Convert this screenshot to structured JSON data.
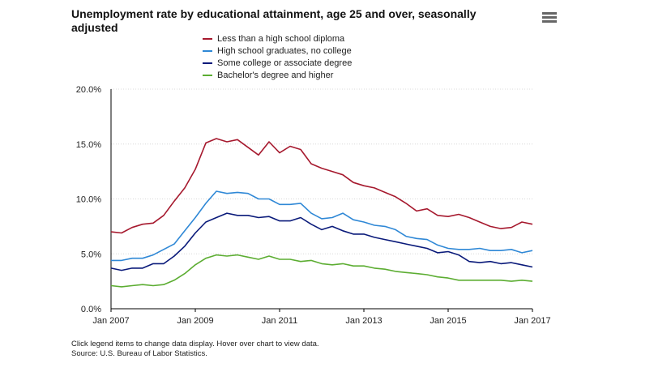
{
  "chart_data": {
    "type": "line",
    "title": "Unemployment rate by educational attainment, age 25 and over, seasonally adjusted",
    "xlabel": "",
    "ylabel": "",
    "ylim": [
      0,
      20
    ],
    "yticks": [
      "0.0%",
      "5.0%",
      "10.0%",
      "15.0%",
      "20.0%"
    ],
    "xticks": [
      "Jan 2007",
      "Jan 2009",
      "Jan 2011",
      "Jan 2013",
      "Jan 2015",
      "Jan 2017"
    ],
    "x": [
      "2007-01",
      "2007-04",
      "2007-07",
      "2007-10",
      "2008-01",
      "2008-04",
      "2008-07",
      "2008-10",
      "2009-01",
      "2009-04",
      "2009-07",
      "2009-10",
      "2010-01",
      "2010-04",
      "2010-07",
      "2010-10",
      "2011-01",
      "2011-04",
      "2011-07",
      "2011-10",
      "2012-01",
      "2012-04",
      "2012-07",
      "2012-10",
      "2013-01",
      "2013-04",
      "2013-07",
      "2013-10",
      "2014-01",
      "2014-04",
      "2014-07",
      "2014-10",
      "2015-01",
      "2015-04",
      "2015-07",
      "2015-10",
      "2016-01",
      "2016-04",
      "2016-07",
      "2016-10",
      "2017-01"
    ],
    "grid": true,
    "legend_position": "top",
    "series": [
      {
        "name": "Less than a high school diploma",
        "color": "#a6192e",
        "values": [
          7.0,
          6.9,
          7.4,
          7.7,
          7.8,
          8.5,
          9.8,
          11.0,
          12.7,
          15.1,
          15.5,
          15.2,
          15.4,
          14.7,
          14.0,
          15.2,
          14.2,
          14.8,
          14.5,
          13.2,
          12.8,
          12.5,
          12.2,
          11.5,
          11.2,
          11.0,
          10.6,
          10.2,
          9.6,
          8.9,
          9.1,
          8.5,
          8.4,
          8.6,
          8.3,
          7.9,
          7.5,
          7.3,
          7.4,
          7.9,
          7.7
        ]
      },
      {
        "name": "High school graduates, no college",
        "color": "#2f88d6",
        "values": [
          4.4,
          4.4,
          4.6,
          4.6,
          4.9,
          5.4,
          5.9,
          7.1,
          8.3,
          9.6,
          10.7,
          10.5,
          10.6,
          10.5,
          10.0,
          10.0,
          9.5,
          9.5,
          9.6,
          8.7,
          8.2,
          8.3,
          8.7,
          8.1,
          7.9,
          7.6,
          7.5,
          7.2,
          6.6,
          6.4,
          6.3,
          5.8,
          5.5,
          5.4,
          5.4,
          5.5,
          5.3,
          5.3,
          5.4,
          5.1,
          5.3
        ]
      },
      {
        "name": "Some college or associate degree",
        "color": "#0a1a7a",
        "values": [
          3.7,
          3.5,
          3.7,
          3.7,
          4.1,
          4.1,
          4.8,
          5.7,
          6.9,
          7.9,
          8.3,
          8.7,
          8.5,
          8.5,
          8.3,
          8.4,
          8.0,
          8.0,
          8.3,
          7.7,
          7.2,
          7.5,
          7.1,
          6.8,
          6.8,
          6.5,
          6.3,
          6.1,
          5.9,
          5.7,
          5.5,
          5.1,
          5.2,
          4.9,
          4.3,
          4.2,
          4.3,
          4.1,
          4.2,
          4.0,
          3.8
        ]
      },
      {
        "name": "Bachelor's degree and higher",
        "color": "#5cad32",
        "values": [
          2.1,
          2.0,
          2.1,
          2.2,
          2.1,
          2.2,
          2.6,
          3.2,
          4.0,
          4.6,
          4.9,
          4.8,
          4.9,
          4.7,
          4.5,
          4.8,
          4.5,
          4.5,
          4.3,
          4.4,
          4.1,
          4.0,
          4.1,
          3.9,
          3.9,
          3.7,
          3.6,
          3.4,
          3.3,
          3.2,
          3.1,
          2.9,
          2.8,
          2.6,
          2.6,
          2.6,
          2.6,
          2.6,
          2.5,
          2.6,
          2.5
        ]
      }
    ]
  },
  "footer": {
    "line1": "Click legend items to change data display. Hover over chart to view data.",
    "line2": "Source: U.S. Bureau of Labor Statistics."
  },
  "icons": {
    "menu": "hamburger-menu-icon"
  }
}
